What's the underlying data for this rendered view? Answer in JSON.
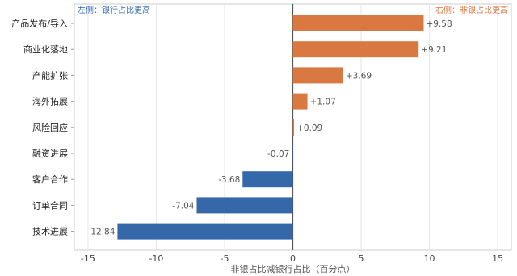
{
  "chart_data": {
    "type": "bar",
    "orientation": "horizontal",
    "categories": [
      "产品发布/导入",
      "商业化落地",
      "产能扩张",
      "海外拓展",
      "风险回应",
      "融资进展",
      "客户合作",
      "订单合同",
      "技术进展"
    ],
    "values": [
      9.58,
      9.21,
      3.69,
      1.07,
      0.09,
      -0.07,
      -3.68,
      -7.04,
      -12.84
    ],
    "value_labels": [
      "+9.58",
      "+9.21",
      "+3.69",
      "+1.07",
      "+0.09",
      "-0.07",
      "-3.68",
      "-7.04",
      "-12.84"
    ],
    "xlabel": "非银占比减银行占比（百分点）",
    "ylabel": "",
    "xlim": [
      -16,
      16
    ],
    "xticks": [
      -15,
      -10,
      -5,
      0,
      5,
      10,
      15
    ],
    "xtick_labels": [
      "-15",
      "-10",
      "-5",
      "0",
      "5",
      "10",
      "15"
    ],
    "grid": true,
    "annotations": {
      "left": "左侧：银行占比更高",
      "right": "右侧：非银占比更高"
    },
    "colors": {
      "positive": "#D97941",
      "negative": "#3568A9",
      "left_note": "#3568A9",
      "right_note": "#D97941",
      "zero_line": "#555555",
      "grid": "#E6E6E6"
    }
  }
}
